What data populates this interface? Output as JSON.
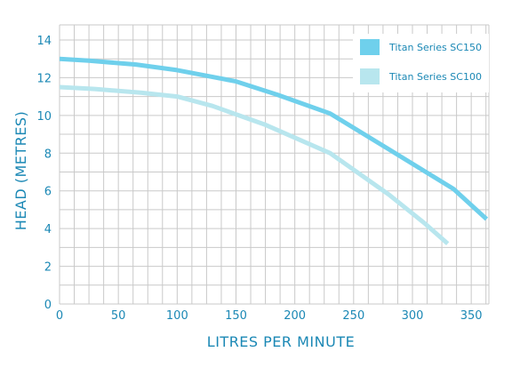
{
  "chart_data": {
    "type": "line",
    "xlabel": "LITRES PER MINUTE",
    "ylabel": "HEAD (METRES)",
    "xlim": [
      0,
      365
    ],
    "ylim": [
      0,
      14.8
    ],
    "x_ticks": [
      0,
      50,
      100,
      150,
      200,
      250,
      300,
      350
    ],
    "y_ticks": [
      0,
      2,
      4,
      6,
      8,
      10,
      12,
      14
    ],
    "grid": true,
    "legend_position": "top-right",
    "series": [
      {
        "name": "Titan Series SC150",
        "color": "#6fd0ec",
        "x": [
          0,
          25,
          65,
          100,
          150,
          185,
          230,
          280,
          335,
          363
        ],
        "y": [
          13.0,
          12.9,
          12.7,
          12.4,
          11.8,
          11.1,
          10.1,
          8.2,
          6.1,
          4.5
        ]
      },
      {
        "name": "Titan Series SC100",
        "color": "#b8e6ee",
        "x": [
          0,
          30,
          70,
          100,
          130,
          175,
          230,
          280,
          310,
          330
        ],
        "y": [
          11.5,
          11.4,
          11.2,
          11.0,
          10.5,
          9.5,
          8.0,
          5.8,
          4.3,
          3.2
        ]
      }
    ]
  }
}
